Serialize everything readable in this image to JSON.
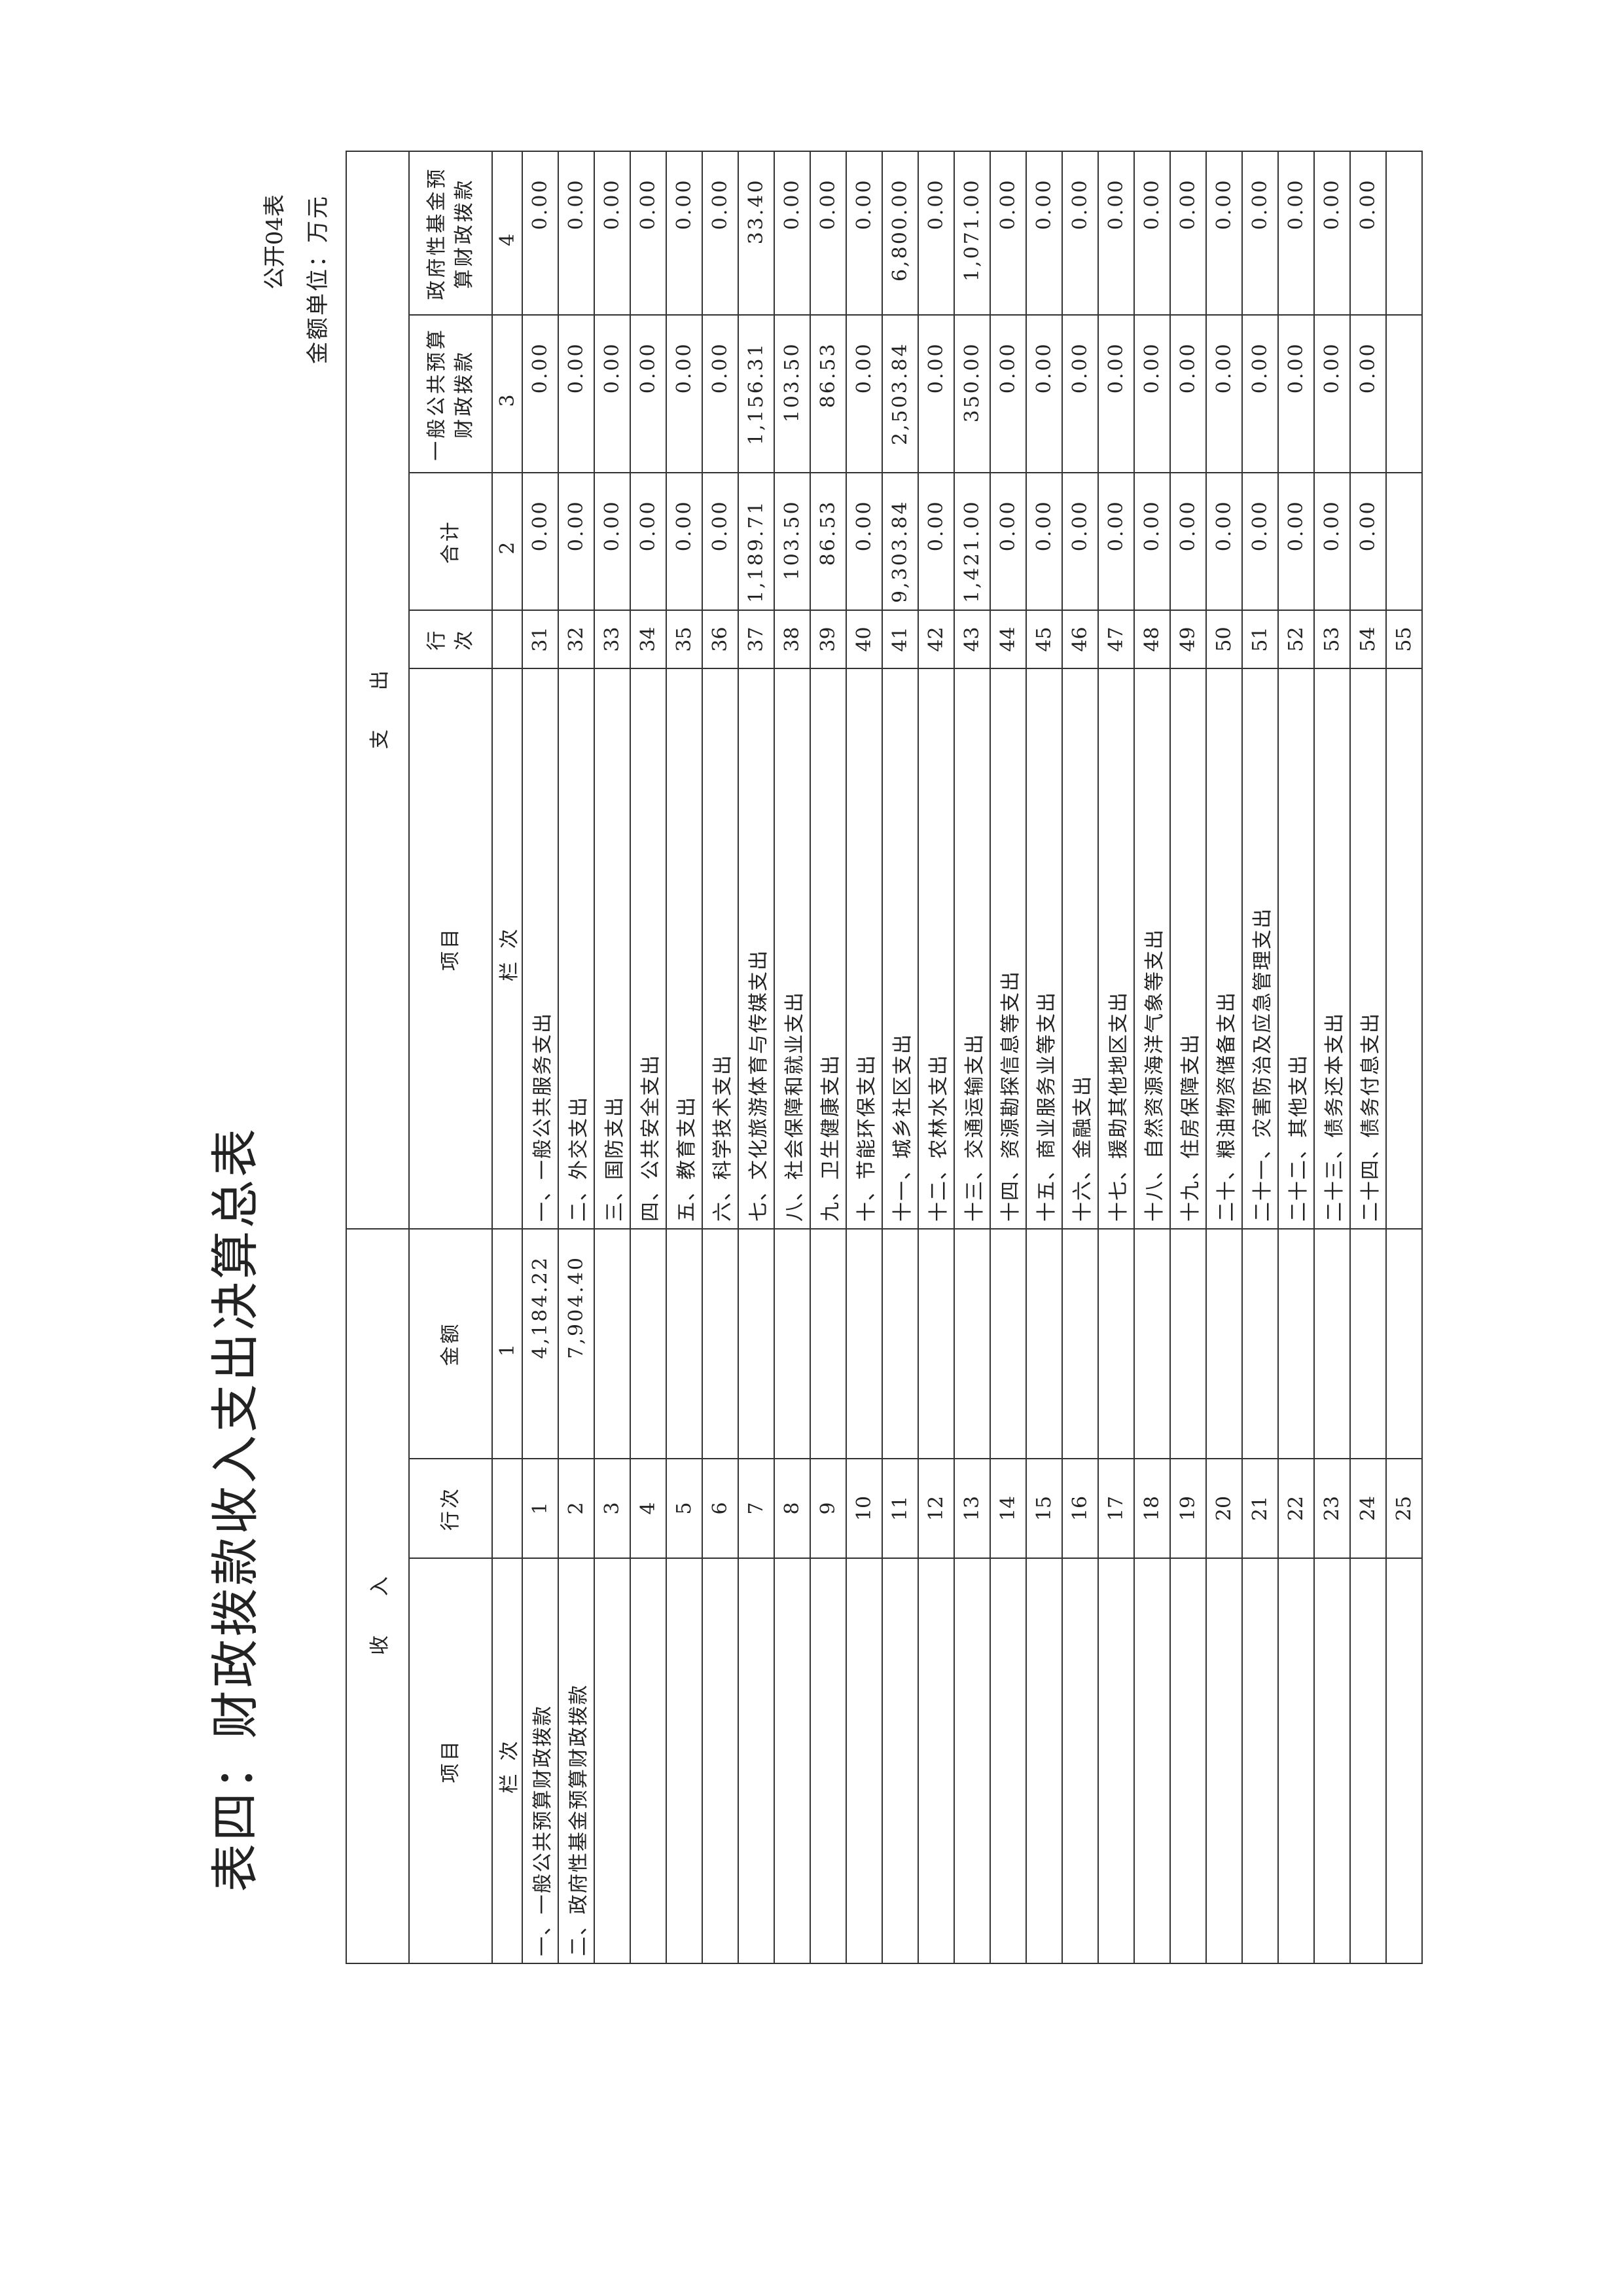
{
  "header": {
    "title": "表四：财政拨款收入支出决算总表",
    "form_code": "公开04表",
    "unit": "金额单位：万元"
  },
  "table": {
    "income_header": "收入",
    "expense_header": "支出",
    "columns": [
      "项目",
      "行次",
      "金额",
      "项目",
      "行次",
      "合计",
      "一般公共预算财政拨款",
      "政府性基金预算财政拨款"
    ],
    "column_numbers": [
      "栏次",
      null,
      "1",
      "栏次",
      null,
      "2",
      "3",
      "4"
    ],
    "rows": [
      [
        "一、一般公共预算财政拨款",
        "1",
        "4,184.22",
        "一、一般公共服务支出",
        "31",
        "0.00",
        "0.00",
        "0.00"
      ],
      [
        "二、政府性基金预算财政拨款",
        "2",
        "7,904.40",
        "二、外交支出",
        "32",
        "0.00",
        "0.00",
        "0.00"
      ],
      [
        null,
        "3",
        null,
        "三、国防支出",
        "33",
        "0.00",
        "0.00",
        "0.00"
      ],
      [
        null,
        "4",
        null,
        "四、公共安全支出",
        "34",
        "0.00",
        "0.00",
        "0.00"
      ],
      [
        null,
        "5",
        null,
        "五、教育支出",
        "35",
        "0.00",
        "0.00",
        "0.00"
      ],
      [
        null,
        "6",
        null,
        "六、科学技术支出",
        "36",
        "0.00",
        "0.00",
        "0.00"
      ],
      [
        null,
        "7",
        null,
        "七、文化旅游体育与传媒支出",
        "37",
        "1,189.71",
        "1,156.31",
        "33.40"
      ],
      [
        null,
        "8",
        null,
        "八、社会保障和就业支出",
        "38",
        "103.50",
        "103.50",
        "0.00"
      ],
      [
        null,
        "9",
        null,
        "九、卫生健康支出",
        "39",
        "86.53",
        "86.53",
        "0.00"
      ],
      [
        null,
        "10",
        null,
        "十、节能环保支出",
        "40",
        "0.00",
        "0.00",
        "0.00"
      ],
      [
        null,
        "11",
        null,
        "十一、城乡社区支出",
        "41",
        "9,303.84",
        "2,503.84",
        "6,800.00"
      ],
      [
        null,
        "12",
        null,
        "十二、农林水支出",
        "42",
        "0.00",
        "0.00",
        "0.00"
      ],
      [
        null,
        "13",
        null,
        "十三、交通运输支出",
        "43",
        "1,421.00",
        "350.00",
        "1,071.00"
      ],
      [
        null,
        "14",
        null,
        "十四、资源勘探信息等支出",
        "44",
        "0.00",
        "0.00",
        "0.00"
      ],
      [
        null,
        "15",
        null,
        "十五、商业服务业等支出",
        "45",
        "0.00",
        "0.00",
        "0.00"
      ],
      [
        null,
        "16",
        null,
        "十六、金融支出",
        "46",
        "0.00",
        "0.00",
        "0.00"
      ],
      [
        null,
        "17",
        null,
        "十七、援助其他地区支出",
        "47",
        "0.00",
        "0.00",
        "0.00"
      ],
      [
        null,
        "18",
        null,
        "十八、自然资源海洋气象等支出",
        "48",
        "0.00",
        "0.00",
        "0.00"
      ],
      [
        null,
        "19",
        null,
        "十九、住房保障支出",
        "49",
        "0.00",
        "0.00",
        "0.00"
      ],
      [
        null,
        "20",
        null,
        "二十、粮油物资储备支出",
        "50",
        "0.00",
        "0.00",
        "0.00"
      ],
      [
        null,
        "21",
        null,
        "二十一、灾害防治及应急管理支出",
        "51",
        "0.00",
        "0.00",
        "0.00"
      ],
      [
        null,
        "22",
        null,
        "二十二、其他支出",
        "52",
        "0.00",
        "0.00",
        "0.00"
      ],
      [
        null,
        "23",
        null,
        "二十三、债务还本支出",
        "53",
        "0.00",
        "0.00",
        "0.00"
      ],
      [
        null,
        "24",
        null,
        "二十四、债务付息支出",
        "54",
        "0.00",
        "0.00",
        "0.00"
      ],
      [
        null,
        "25",
        null,
        null,
        "55",
        null,
        null,
        null
      ]
    ]
  }
}
